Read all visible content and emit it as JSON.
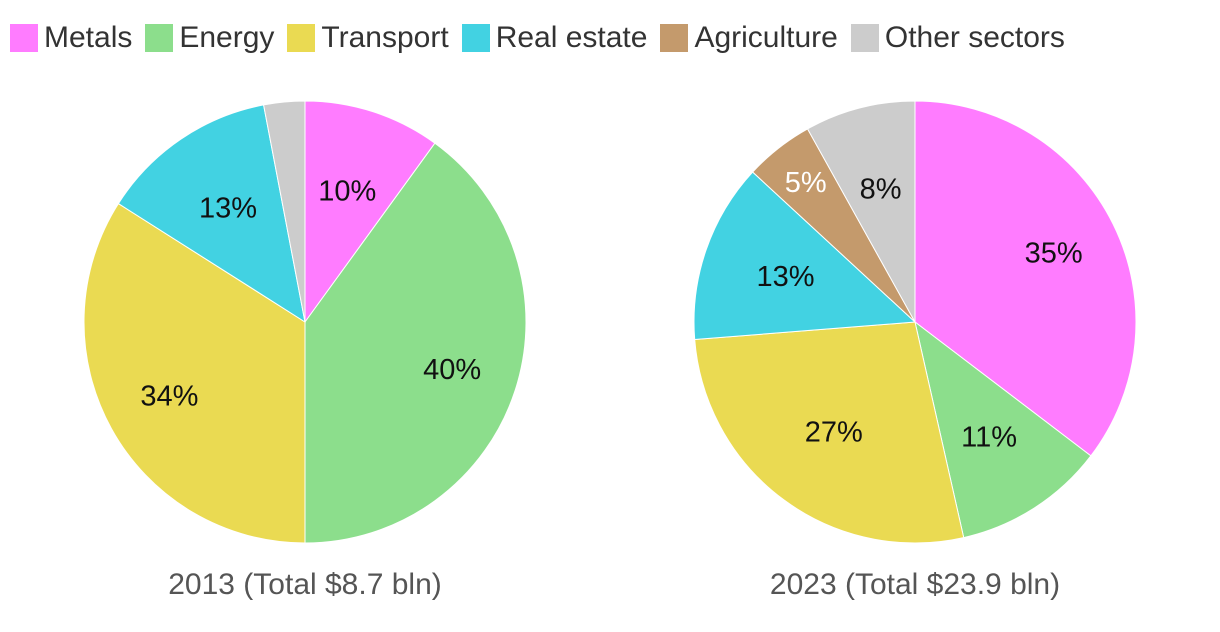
{
  "chart_data": [
    {
      "type": "pie",
      "title": "2013 (Total $8.7 bln)",
      "categories": [
        "Metals",
        "Energy",
        "Transport",
        "Real estate",
        "Agriculture",
        "Other sectors"
      ],
      "values": [
        10,
        40,
        34,
        13,
        0,
        3
      ],
      "labels": [
        "10%",
        "40%",
        "34%",
        "13%",
        "",
        ""
      ],
      "colors": [
        "#ff7cff",
        "#8cde8c",
        "#eada52",
        "#42d2e2",
        "#c49a6c",
        "#cccccc"
      ],
      "label_colors": [
        "#111111",
        "#111111",
        "#111111",
        "#111111",
        "#ffffff",
        "#111111"
      ]
    },
    {
      "type": "pie",
      "title": "2023 (Total $23.9 bln)",
      "categories": [
        "Metals",
        "Energy",
        "Transport",
        "Real estate",
        "Agriculture",
        "Other sectors"
      ],
      "values": [
        35,
        11,
        27,
        13,
        5,
        8
      ],
      "labels": [
        "35%",
        "11%",
        "27%",
        "13%",
        "5%",
        "8%"
      ],
      "colors": [
        "#ff7cff",
        "#8cde8c",
        "#eada52",
        "#42d2e2",
        "#c49a6c",
        "#cccccc"
      ],
      "label_colors": [
        "#111111",
        "#111111",
        "#111111",
        "#111111",
        "#ffffff",
        "#111111"
      ]
    }
  ],
  "legend": {
    "items": [
      {
        "label": "Metals",
        "color": "#ff7cff"
      },
      {
        "label": "Energy",
        "color": "#8cde8c"
      },
      {
        "label": "Transport",
        "color": "#eada52"
      },
      {
        "label": "Real estate",
        "color": "#42d2e2"
      },
      {
        "label": "Agriculture",
        "color": "#c49a6c"
      },
      {
        "label": "Other sectors",
        "color": "#cccccc"
      }
    ]
  }
}
